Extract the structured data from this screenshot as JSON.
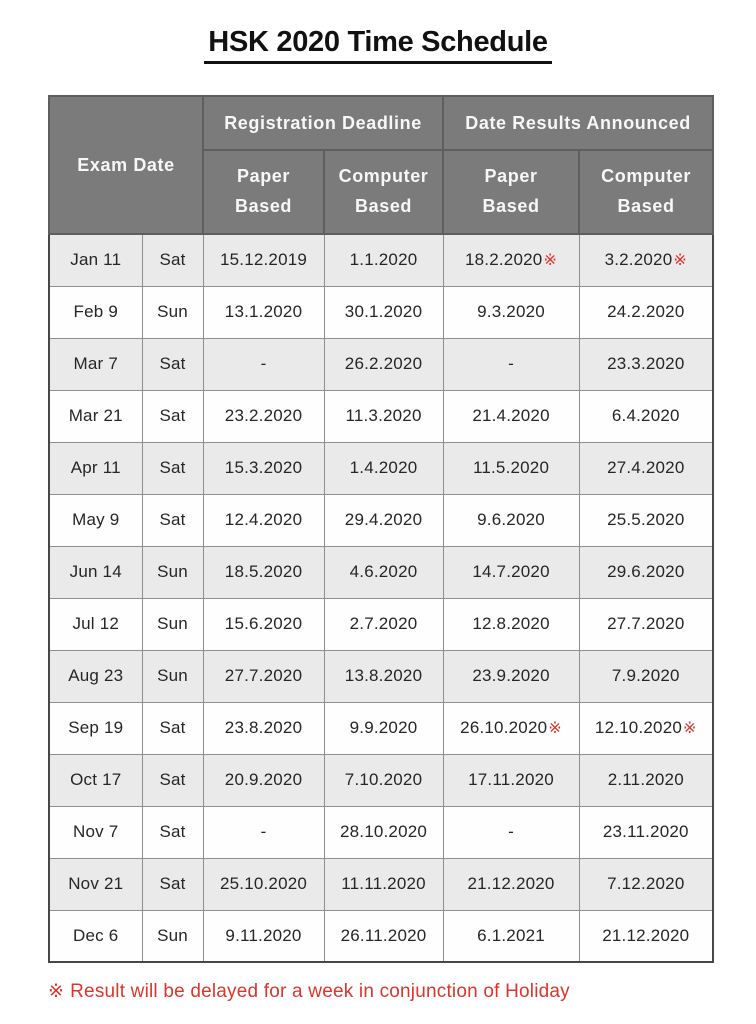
{
  "page": {
    "title": "HSK 2020 Time Schedule",
    "footnote_marker": "※",
    "footnote_text": "Result will be delayed for a week in conjunction of Holiday"
  },
  "colors": {
    "header_bg": "#7b7b7b",
    "header_text": "#f7f7f7",
    "header_border": "#5e5e5e",
    "outer_border": "#474747",
    "cell_border": "#8e8e8e",
    "row_stripe": "#eaeaea",
    "row_white": "#fefefe",
    "delay_red": "#dd352c"
  },
  "table": {
    "header": {
      "exam_date": "Exam Date",
      "registration_deadline": "Registration Deadline",
      "date_results_announced": "Date Results Announced",
      "paper_line1": "Paper",
      "paper_line2": "Based",
      "computer_line1": "Computer",
      "computer_line2": "Based"
    },
    "rows": [
      {
        "exam_date": "Jan 11",
        "day": "Sat",
        "reg_paper": "15.12.2019",
        "reg_computer": "1.1.2020",
        "res_paper": "18.2.2020",
        "res_paper_note": "※",
        "res_computer": "3.2.2020",
        "res_computer_note": "※"
      },
      {
        "exam_date": "Feb 9",
        "day": "Sun",
        "reg_paper": "13.1.2020",
        "reg_computer": "30.1.2020",
        "res_paper": "9.3.2020",
        "res_paper_note": "",
        "res_computer": "24.2.2020",
        "res_computer_note": ""
      },
      {
        "exam_date": "Mar 7",
        "day": "Sat",
        "reg_paper": "-",
        "reg_computer": "26.2.2020",
        "res_paper": "-",
        "res_paper_note": "",
        "res_computer": "23.3.2020",
        "res_computer_note": ""
      },
      {
        "exam_date": "Mar 21",
        "day": "Sat",
        "reg_paper": "23.2.2020",
        "reg_computer": "11.3.2020",
        "res_paper": "21.4.2020",
        "res_paper_note": "",
        "res_computer": "6.4.2020",
        "res_computer_note": ""
      },
      {
        "exam_date": "Apr 11",
        "day": "Sat",
        "reg_paper": "15.3.2020",
        "reg_computer": "1.4.2020",
        "res_paper": "11.5.2020",
        "res_paper_note": "",
        "res_computer": "27.4.2020",
        "res_computer_note": ""
      },
      {
        "exam_date": "May 9",
        "day": "Sat",
        "reg_paper": "12.4.2020",
        "reg_computer": "29.4.2020",
        "res_paper": "9.6.2020",
        "res_paper_note": "",
        "res_computer": "25.5.2020",
        "res_computer_note": ""
      },
      {
        "exam_date": "Jun 14",
        "day": "Sun",
        "reg_paper": "18.5.2020",
        "reg_computer": "4.6.2020",
        "res_paper": "14.7.2020",
        "res_paper_note": "",
        "res_computer": "29.6.2020",
        "res_computer_note": ""
      },
      {
        "exam_date": "Jul 12",
        "day": "Sun",
        "reg_paper": "15.6.2020",
        "reg_computer": "2.7.2020",
        "res_paper": "12.8.2020",
        "res_paper_note": "",
        "res_computer": "27.7.2020",
        "res_computer_note": ""
      },
      {
        "exam_date": "Aug 23",
        "day": "Sun",
        "reg_paper": "27.7.2020",
        "reg_computer": "13.8.2020",
        "res_paper": "23.9.2020",
        "res_paper_note": "",
        "res_computer": "7.9.2020",
        "res_computer_note": ""
      },
      {
        "exam_date": "Sep 19",
        "day": "Sat",
        "reg_paper": "23.8.2020",
        "reg_computer": "9.9.2020",
        "res_paper": "26.10.2020",
        "res_paper_note": "※",
        "res_computer": "12.10.2020",
        "res_computer_note": "※"
      },
      {
        "exam_date": "Oct 17",
        "day": "Sat",
        "reg_paper": "20.9.2020",
        "reg_computer": "7.10.2020",
        "res_paper": "17.11.2020",
        "res_paper_note": "",
        "res_computer": "2.11.2020",
        "res_computer_note": ""
      },
      {
        "exam_date": "Nov 7",
        "day": "Sat",
        "reg_paper": "-",
        "reg_computer": "28.10.2020",
        "res_paper": "-",
        "res_paper_note": "",
        "res_computer": "23.11.2020",
        "res_computer_note": ""
      },
      {
        "exam_date": "Nov 21",
        "day": "Sat",
        "reg_paper": "25.10.2020",
        "reg_computer": "11.11.2020",
        "res_paper": "21.12.2020",
        "res_paper_note": "",
        "res_computer": "7.12.2020",
        "res_computer_note": ""
      },
      {
        "exam_date": "Dec 6",
        "day": "Sun",
        "reg_paper": "9.11.2020",
        "reg_computer": "26.11.2020",
        "res_paper": "6.1.2021",
        "res_paper_note": "",
        "res_computer": "21.12.2020",
        "res_computer_note": ""
      }
    ]
  }
}
